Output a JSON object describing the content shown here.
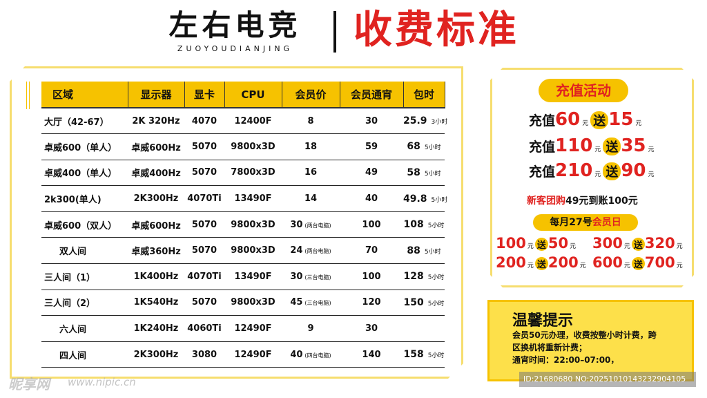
{
  "header": {
    "brand_name": "左右电竞",
    "brand_pinyin": "ZUOYOUDIANJING",
    "title": "收费标准"
  },
  "table": {
    "columns": [
      "区域",
      "显示器",
      "显卡",
      "CPU",
      "会员价",
      "会员通宵",
      "包时"
    ],
    "rows": [
      {
        "area": "大厅（42-67）",
        "monitor": "2K 320Hz",
        "gpu": "4070",
        "cpu": "12400F",
        "price": "8",
        "price_note": "",
        "overnight": "30",
        "package": "25.9",
        "package_unit": "3小时",
        "indent": false
      },
      {
        "area": "卓威600（单人）",
        "monitor": "卓威600Hz",
        "gpu": "5070",
        "cpu": "9800x3D",
        "price": "18",
        "price_note": "",
        "overnight": "59",
        "package": "68",
        "package_unit": "5小时",
        "indent": false
      },
      {
        "area": "卓威400（单人）",
        "monitor": "卓威400Hz",
        "gpu": "5070",
        "cpu": "7800x3D",
        "price": "16",
        "price_note": "",
        "overnight": "49",
        "package": "58",
        "package_unit": "5小时",
        "indent": false
      },
      {
        "area": "2k300(单人)",
        "monitor": "2K300Hz",
        "gpu": "4070Ti",
        "cpu": "13490F",
        "price": "14",
        "price_note": "",
        "overnight": "40",
        "package": "49.8",
        "package_unit": "5小时",
        "indent": false
      },
      {
        "area": "卓威600（双人）",
        "monitor": "卓威600Hz",
        "gpu": "5070",
        "cpu": "9800x3D",
        "price": "30",
        "price_note": "(两台电脑)",
        "overnight": "100",
        "package": "108",
        "package_unit": "5小时",
        "indent": false
      },
      {
        "area": "双人间",
        "monitor": "卓威360Hz",
        "gpu": "5070",
        "cpu": "9800x3D",
        "price": "24",
        "price_note": "(两台电脑)",
        "overnight": "70",
        "package": "88",
        "package_unit": "5小时",
        "indent": true
      },
      {
        "area": "三人间（1）",
        "monitor": "1K400Hz",
        "gpu": "4070Ti",
        "cpu": "13490F",
        "price": "30",
        "price_note": "(三台电脑)",
        "overnight": "100",
        "package": "128",
        "package_unit": "5小时",
        "indent": false
      },
      {
        "area": "三人间（2）",
        "monitor": "1K540Hz",
        "gpu": "5070",
        "cpu": "9800x3D",
        "price": "45",
        "price_note": "(三台电脑)",
        "overnight": "120",
        "package": "150",
        "package_unit": "5小时",
        "indent": false
      },
      {
        "area": "六人间",
        "monitor": "1K240Hz",
        "gpu": "4060Ti",
        "cpu": "12490F",
        "price": "9",
        "price_note": "",
        "overnight": "30",
        "package": "",
        "package_unit": "",
        "indent": true
      },
      {
        "area": "四人间",
        "monitor": "2K300Hz",
        "gpu": "3080",
        "cpu": "12490F",
        "price": "40",
        "price_note": "(四台电脑)",
        "overnight": "140",
        "package": "158",
        "package_unit": "5小时",
        "indent": true
      }
    ]
  },
  "promo": {
    "title": "充值活动",
    "recharge_prefix": "充值",
    "give_label": "送",
    "yuan": "元",
    "recharge_offers": [
      {
        "amount": "60",
        "bonus": "15"
      },
      {
        "amount": "110",
        "bonus": "35"
      },
      {
        "amount": "210",
        "bonus": "90"
      }
    ],
    "newcomer_prefix": "新客团购",
    "newcomer_pay": "49元",
    "newcomer_mid": "到账",
    "newcomer_get": "100元",
    "member_day_prefix": "每月27号",
    "member_day_label": "会员日",
    "member_day_offers": [
      {
        "amount": "100",
        "bonus": "50"
      },
      {
        "amount": "300",
        "bonus": "320"
      },
      {
        "amount": "200",
        "bonus": "200"
      },
      {
        "amount": "600",
        "bonus": "700"
      }
    ]
  },
  "tips": {
    "title": "温馨提示",
    "lines": [
      "会员50元办理，收费按整小时计费，跨",
      "区换机将重新计费；",
      "通宵时间：22:00–07:00，"
    ]
  },
  "watermark": {
    "logo": "昵享网",
    "url": "www.nipic.cn",
    "id": "ID:21680680 NO:20251010143232904105"
  },
  "colors": {
    "accent_yellow": "#f6c200",
    "accent_red": "#e02320",
    "frame_yellow": "#f6dd6e",
    "tips_bg": "#fde04a"
  }
}
